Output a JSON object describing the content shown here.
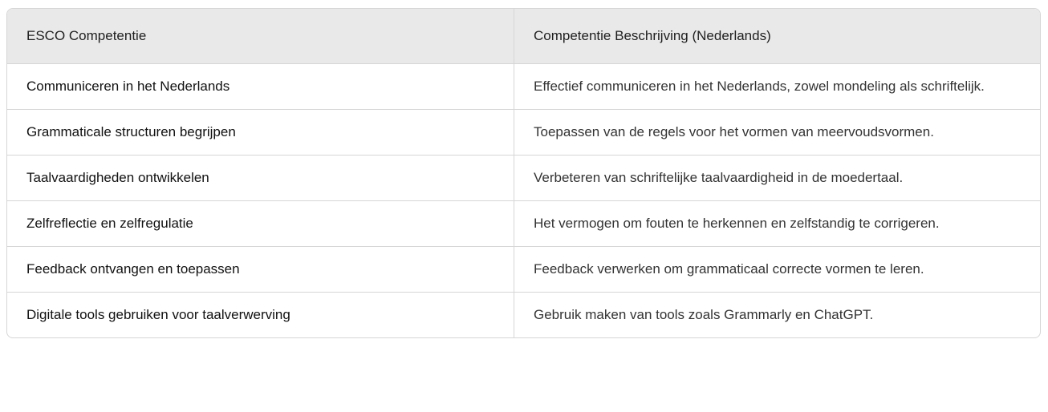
{
  "table": {
    "headers": [
      "ESCO Competentie",
      "Competentie Beschrijving (Nederlands)"
    ],
    "rows": [
      [
        "Communiceren in het Nederlands",
        "Effectief communiceren in het Nederlands, zowel mondeling als schriftelijk."
      ],
      [
        "Grammaticale structuren begrijpen",
        "Toepassen van de regels voor het vormen van meervoudsvormen."
      ],
      [
        "Taalvaardigheden ontwikkelen",
        "Verbeteren van schriftelijke taalvaardigheid in de moedertaal."
      ],
      [
        "Zelfreflectie en zelfregulatie",
        "Het vermogen om fouten te herkennen en zelfstandig te corrigeren."
      ],
      [
        "Feedback ontvangen en toepassen",
        "Feedback verwerken om grammaticaal correcte vormen te leren."
      ],
      [
        "Digitale tools gebruiken voor taalverwerving",
        "Gebruik maken van tools zoals Grammarly en ChatGPT."
      ]
    ]
  }
}
